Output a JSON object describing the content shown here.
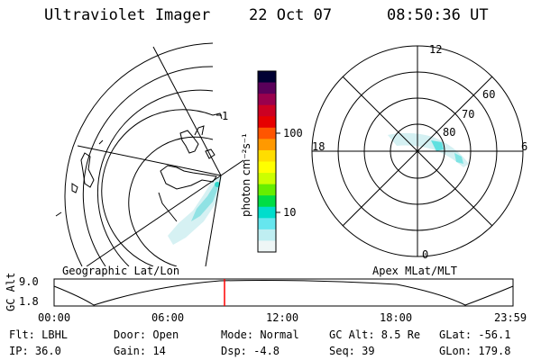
{
  "header": {
    "instrument": "Ultraviolet Imager",
    "date": "22 Oct 07",
    "time": "08:50:36 UT"
  },
  "colorbar": {
    "unit_label": "photon cm⁻²s⁻¹",
    "ticks": [
      "100",
      "10"
    ],
    "colors": [
      "#000033",
      "#5a005a",
      "#99004d",
      "#cc0022",
      "#e60000",
      "#ff5500",
      "#ff9900",
      "#ffdd00",
      "#ffff00",
      "#ccff00",
      "#66ee00",
      "#00dd44",
      "#00ddcc",
      "#66e6ee",
      "#bfeef2",
      "#eef6f6"
    ]
  },
  "geo_map": {
    "label": "Geographic Lat/Lon",
    "tick_marks": [
      "1"
    ]
  },
  "polar_plot": {
    "label": "Apex MLat/MLT",
    "mlt_labels": {
      "top": "12",
      "left": "18",
      "right": "6",
      "bottom": "0"
    },
    "lat_labels": [
      "60",
      "70",
      "80"
    ]
  },
  "altitude": {
    "axis_label": "GC Alt",
    "y_ticks": [
      "9.0",
      "1.8"
    ],
    "x_ticks": [
      "00:00",
      "06:00",
      "12:00",
      "18:00",
      "23:59"
    ],
    "marker_color": "#ff0000"
  },
  "status": {
    "flt": "Flt: LBHL",
    "ip": "IP: 36.0",
    "door": "Door: Open",
    "gain": "Gain: 14",
    "mode": "Mode: Normal",
    "dsp": "Dsp:   -4.8",
    "gc_alt": "GC Alt: 8.5 Re",
    "seq": "Seq: 39",
    "glat": "GLat: -56.1",
    "glon": "GLon: 179.8"
  }
}
